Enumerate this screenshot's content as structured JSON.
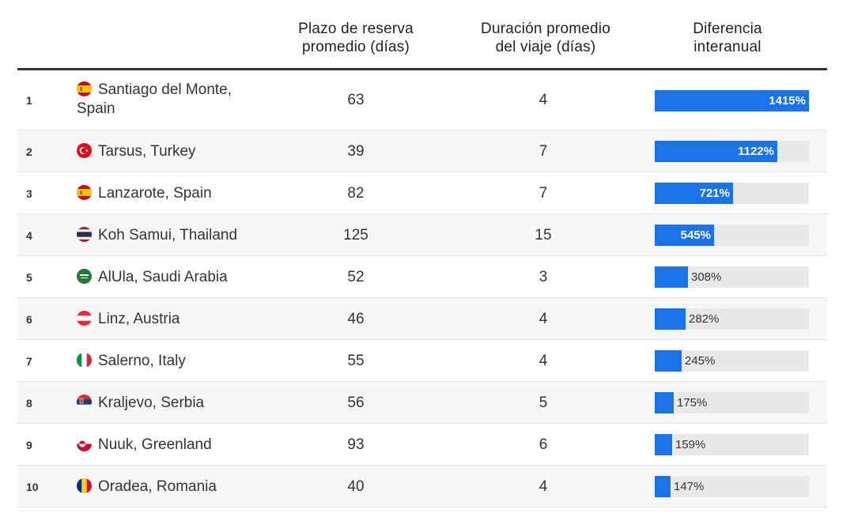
{
  "headers": {
    "booking": [
      "Plazo de reserva",
      "promedio (días)"
    ],
    "duration": [
      "Duración promedio",
      "del viaje (días)"
    ],
    "difference": [
      "Diferencia",
      "interanual"
    ]
  },
  "colors": {
    "bar": "#1a73e8",
    "track": "#e9e9e9",
    "alt_row": "#f7f7f7"
  },
  "rows": [
    {
      "rank": "1",
      "city": "Santiago del Monte, Spain",
      "flag": "spain-flag-icon",
      "booking": "63",
      "duration": "4",
      "diff_label": "1415%"
    },
    {
      "rank": "2",
      "city": "Tarsus, Turkey",
      "flag": "turkey-flag-icon",
      "booking": "39",
      "duration": "7",
      "diff_label": "1122%"
    },
    {
      "rank": "3",
      "city": "Lanzarote, Spain",
      "flag": "spain-flag-icon",
      "booking": "82",
      "duration": "7",
      "diff_label": "721%"
    },
    {
      "rank": "4",
      "city": "Koh Samui, Thailand",
      "flag": "thailand-flag-icon",
      "booking": "125",
      "duration": "15",
      "diff_label": "545%"
    },
    {
      "rank": "5",
      "city": "AlUla, Saudi Arabia",
      "flag": "saudi-arabia-flag-icon",
      "booking": "52",
      "duration": "3",
      "diff_label": "308%"
    },
    {
      "rank": "6",
      "city": "Linz, Austria",
      "flag": "austria-flag-icon",
      "booking": "46",
      "duration": "4",
      "diff_label": "282%"
    },
    {
      "rank": "7",
      "city": "Salerno, Italy",
      "flag": "italy-flag-icon",
      "booking": "55",
      "duration": "4",
      "diff_label": "245%"
    },
    {
      "rank": "8",
      "city": "Kraljevo, Serbia",
      "flag": "serbia-flag-icon",
      "booking": "56",
      "duration": "5",
      "diff_label": "175%"
    },
    {
      "rank": "9",
      "city": "Nuuk, Greenland",
      "flag": "greenland-flag-icon",
      "booking": "93",
      "duration": "6",
      "diff_label": "159%"
    },
    {
      "rank": "10",
      "city": "Oradea, Romania",
      "flag": "romania-flag-icon",
      "booking": "40",
      "duration": "4",
      "diff_label": "147%"
    }
  ],
  "chart_data": {
    "type": "table",
    "columns": [
      "",
      "",
      "Plazo de reserva promedio (días)",
      "Duración promedio del viaje (días)",
      "Diferencia interanual"
    ],
    "categories": [
      "Santiago del Monte, Spain",
      "Tarsus, Turkey",
      "Lanzarote, Spain",
      "Koh Samui, Thailand",
      "AlUla, Saudi Arabia",
      "Linz, Austria",
      "Salerno, Italy",
      "Kraljevo, Serbia",
      "Nuuk, Greenland",
      "Oradea, Romania"
    ],
    "series": [
      {
        "name": "Plazo de reserva promedio (días)",
        "values": [
          63,
          39,
          82,
          125,
          52,
          46,
          55,
          56,
          93,
          40
        ]
      },
      {
        "name": "Duración promedio del viaje (días)",
        "values": [
          4,
          7,
          7,
          15,
          3,
          4,
          4,
          5,
          6,
          4
        ]
      },
      {
        "name": "Diferencia interanual",
        "values": [
          1415,
          1122,
          721,
          545,
          308,
          282,
          245,
          175,
          159,
          147
        ]
      }
    ],
    "bar_max": 1415
  }
}
